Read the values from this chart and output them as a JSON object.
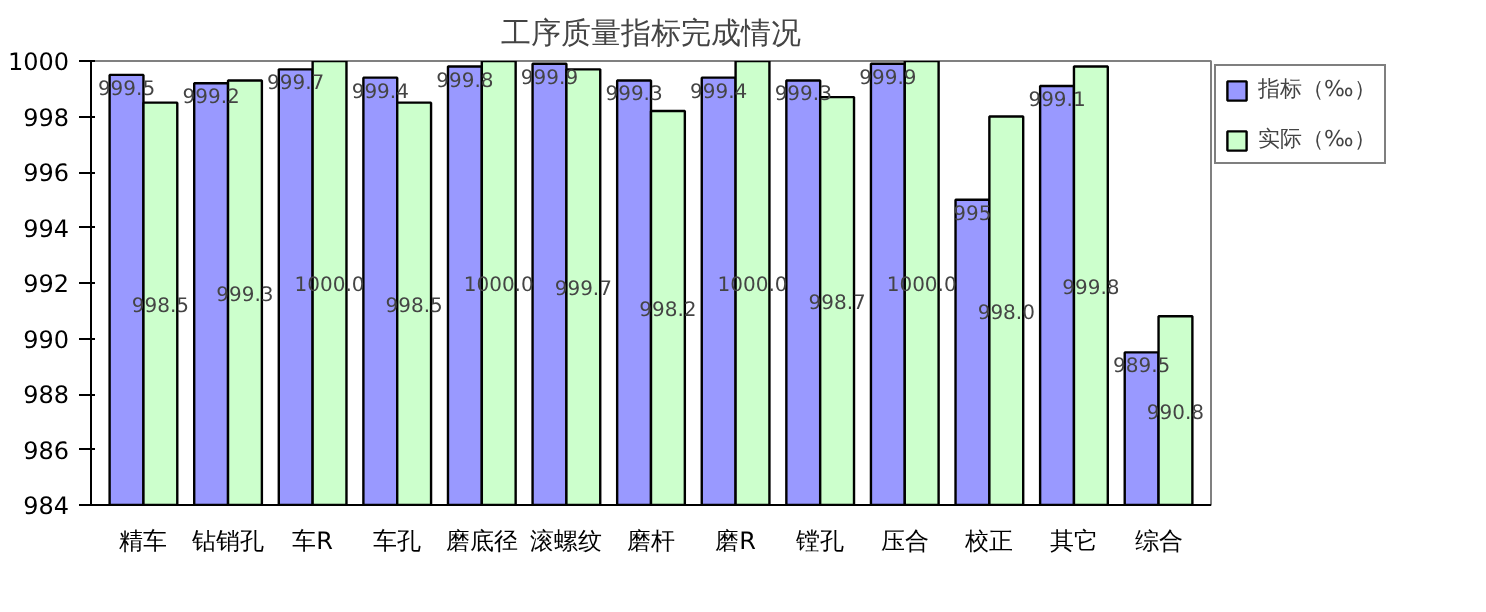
{
  "chart_data": {
    "type": "bar",
    "title": "工序质量指标完成情况",
    "categories": [
      "精车",
      "钻销孔",
      "车R",
      "车孔",
      "磨底径",
      "滚螺纹",
      "磨杆",
      "磨R",
      "镗孔",
      "压合",
      "校正",
      "其它",
      "综合"
    ],
    "series": [
      {
        "name": "指标（‰）",
        "color": "#9999ff",
        "values": [
          999.5,
          999.2,
          999.7,
          999.4,
          999.8,
          999.9,
          999.3,
          999.4,
          999.3,
          999.9,
          995,
          999.1,
          989.5
        ],
        "value_labels": [
          "999.5",
          "999.2",
          "999.7",
          "999.4",
          "999.8",
          "999.9",
          "999.3",
          "999.4",
          "999.3",
          "999.9",
          "995",
          "999.1",
          "989.5"
        ]
      },
      {
        "name": "实际（‰）",
        "color": "#ccffcc",
        "values": [
          998.5,
          999.3,
          1000.0,
          998.5,
          1000.0,
          999.7,
          998.2,
          1000.0,
          998.7,
          1000.0,
          998.0,
          999.8,
          990.8
        ],
        "value_labels": [
          "998.5",
          "999.3",
          "1000.0",
          "998.5",
          "1000.0",
          "999.7",
          "998.2",
          "1000.0",
          "998.7",
          "1000.0",
          "998.0",
          "999.8",
          "990.8"
        ]
      }
    ],
    "ylim": [
      984,
      1000
    ],
    "yticks": [
      984,
      986,
      988,
      990,
      992,
      994,
      996,
      998,
      1000
    ],
    "grid": false,
    "legend": "top right"
  }
}
